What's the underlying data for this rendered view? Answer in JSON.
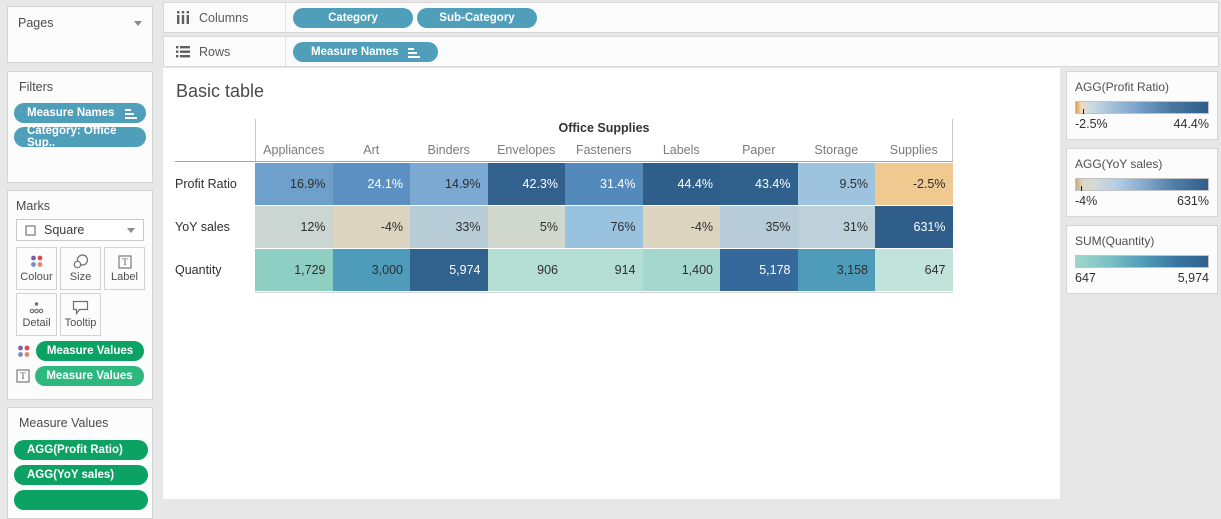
{
  "shelves": {
    "columns_label": "Columns",
    "rows_label": "Rows",
    "columns_pills": [
      "Category",
      "Sub-Category"
    ],
    "rows_pills": [
      "Measure Names"
    ]
  },
  "left_panel": {
    "pages_title": "Pages",
    "filters_title": "Filters",
    "filter_pills": [
      "Measure Names",
      "Category: Office Sup.."
    ],
    "marks_title": "Marks",
    "mark_type": "Square",
    "mark_buttons": [
      "Colour",
      "Size",
      "Label",
      "Detail",
      "Tooltip"
    ],
    "mark_pills": [
      "Measure Values",
      "Measure Values"
    ],
    "measure_values_title": "Measure Values",
    "measure_values_pills": [
      "AGG(Profit Ratio)",
      "AGG(YoY sales)"
    ]
  },
  "canvas": {
    "title": "Basic table"
  },
  "chart_data": {
    "type": "heatmap",
    "title": "Basic table",
    "category_header": "Office Supplies",
    "columns": [
      "Appliances",
      "Art",
      "Binders",
      "Envelopes",
      "Fasteners",
      "Labels",
      "Paper",
      "Storage",
      "Supplies"
    ],
    "rows": [
      {
        "label": "Profit Ratio",
        "values": [
          "16.9%",
          "24.1%",
          "14.9%",
          "42.3%",
          "31.4%",
          "44.4%",
          "43.4%",
          "9.5%",
          "-2.5%"
        ],
        "numeric": [
          16.9,
          24.1,
          14.9,
          42.3,
          31.4,
          44.4,
          43.4,
          9.5,
          -2.5
        ],
        "cell_colors": [
          "#6FA0CB",
          "#5C90C3",
          "#7BA9D1",
          "#32618D",
          "#5389BB",
          "#2F5E8A",
          "#30608C",
          "#9DC3DE",
          "#EFC98F"
        ],
        "text_colors": [
          "dark",
          "light",
          "dark",
          "light",
          "light",
          "light",
          "light",
          "dark",
          "dark"
        ]
      },
      {
        "label": "YoY sales",
        "values": [
          "12%",
          "-4%",
          "33%",
          "5%",
          "76%",
          "-4%",
          "35%",
          "31%",
          "631%"
        ],
        "numeric": [
          12,
          -4,
          33,
          5,
          76,
          -4,
          35,
          31,
          631
        ],
        "cell_colors": [
          "#CBD5D1",
          "#DDD4BF",
          "#B9CDD9",
          "#D0D8CE",
          "#99C2DF",
          "#DDD4BF",
          "#B7CCD8",
          "#BED1DB",
          "#2F5E8A"
        ],
        "text_colors": [
          "dark",
          "dark",
          "dark",
          "dark",
          "dark",
          "dark",
          "dark",
          "dark",
          "light"
        ]
      },
      {
        "label": "Quantity",
        "values": [
          "1,729",
          "3,000",
          "5,974",
          "906",
          "914",
          "1,400",
          "5,178",
          "3,158",
          "647"
        ],
        "numeric": [
          1729,
          3000,
          5974,
          906,
          914,
          1400,
          5178,
          3158,
          647
        ],
        "cell_colors": [
          "#8FCEC3",
          "#4F9CBA",
          "#31618D",
          "#B4DDD3",
          "#B4DDD3",
          "#A5D7CC",
          "#35699B",
          "#4F9CBA",
          "#C2E3D9"
        ],
        "text_colors": [
          "dark",
          "dark",
          "light",
          "dark",
          "dark",
          "dark",
          "light",
          "dark",
          "dark"
        ]
      }
    ]
  },
  "legends": [
    {
      "title": "AGG(Profit Ratio)",
      "min_label": "-2.5%",
      "max_label": "44.4%",
      "tick_pos": 5,
      "stops": [
        [
          "#DC9E55",
          0
        ],
        [
          "#EEDBBC",
          4
        ],
        [
          "#CDDBE4",
          11
        ],
        [
          "#A9C6DD",
          24
        ],
        [
          "#7BA2C8",
          46
        ],
        [
          "#49789F",
          72
        ],
        [
          "#2E5E8A",
          100
        ]
      ]
    },
    {
      "title": "AGG(YoY sales)",
      "min_label": "-4%",
      "max_label": "631%",
      "tick_pos": 4,
      "stops": [
        [
          "#C3AE85",
          0
        ],
        [
          "#DED5C1",
          5
        ],
        [
          "#D5DBD8",
          13
        ],
        [
          "#B5CFE3",
          30
        ],
        [
          "#84A9CE",
          52
        ],
        [
          "#517EA9",
          74
        ],
        [
          "#2E5E8A",
          100
        ]
      ]
    },
    {
      "title": "SUM(Quantity)",
      "min_label": "647",
      "max_label": "5,974",
      "tick_pos": null,
      "stops": [
        [
          "#9ED8C8",
          0
        ],
        [
          "#7CC0C4",
          25
        ],
        [
          "#519EBB",
          50
        ],
        [
          "#3A77A4",
          75
        ],
        [
          "#2E608C",
          100
        ]
      ]
    }
  ],
  "colors": {
    "pill_blue": "#4F9EBA",
    "pill_green": "#0CA263",
    "pill_green_light": "#2EB77E",
    "cell_text_dark": "#2E2E2E",
    "cell_text_light": "#FFFFFF"
  }
}
